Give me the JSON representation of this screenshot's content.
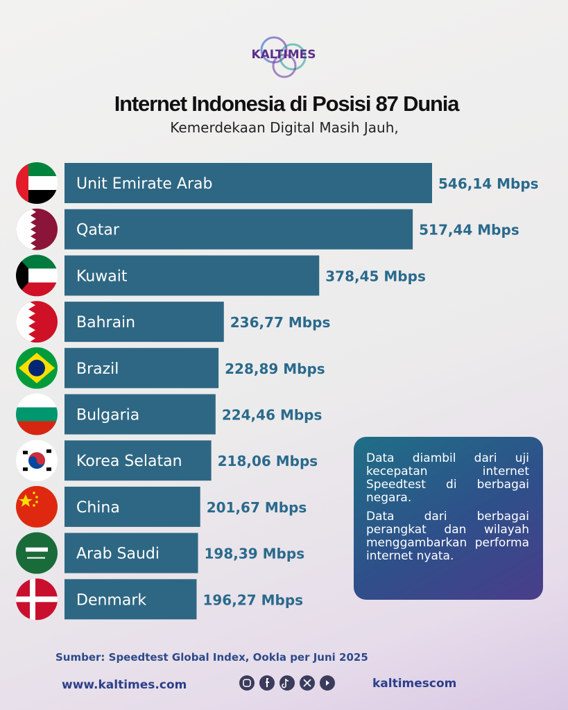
{
  "brand": "KALTIMES",
  "chart_data": {
    "type": "bar",
    "title": "Internet Indonesia di Posisi 87 Dunia",
    "subtitle": "Kemerdekaan Digital Masih Jauh,",
    "categories": [
      "Unit Emirate Arab",
      "Qatar",
      "Kuwait",
      "Bahrain",
      "Brazil",
      "Bulgaria",
      "Korea Selatan",
      "China",
      "Arab Saudi",
      "Denmark"
    ],
    "values": [
      546.14,
      517.44,
      378.45,
      236.77,
      228.89,
      224.46,
      218.06,
      201.67,
      198.39,
      196.27
    ],
    "value_labels": [
      "546,14 Mbps",
      "517,44 Mbps",
      "378,45 Mbps",
      "236,77 Mbps",
      "228,89 Mbps",
      "224,46 Mbps",
      "218,06 Mbps",
      "201,67 Mbps",
      "198,39 Mbps",
      "196,27 Mbps"
    ],
    "color": "#2e6783"
  },
  "note": [
    "Data diambil dari uji kecepatan internet Speedtest di berbagai negara.",
    "Data dari berbagai perangkat dan wilayah menggambarkan performa internet nyata."
  ],
  "source": "Sumber: Speedtest Global Index, Ookla per Juni 2025",
  "website": "www.kaltimes.com",
  "handle": "kaltimescom"
}
